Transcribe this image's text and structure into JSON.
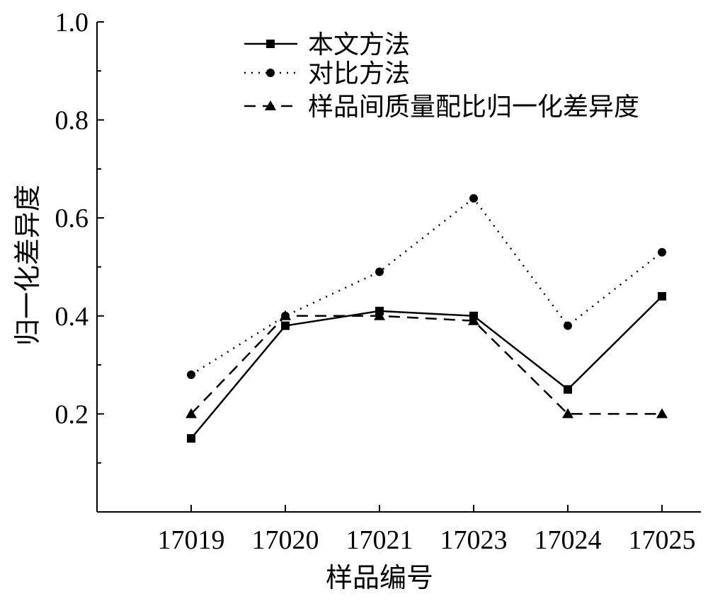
{
  "chart_data": {
    "type": "line",
    "title": "",
    "xlabel": "样品编号",
    "ylabel": "归一化差异度",
    "categories": [
      "17019",
      "17020",
      "17021",
      "17023",
      "17024",
      "17025"
    ],
    "ylim": [
      0,
      1.0
    ],
    "yticks": [
      "0.2",
      "0.4",
      "0.6",
      "0.8",
      "1.0"
    ],
    "ytick_values": [
      0.2,
      0.4,
      0.6,
      0.8,
      1.0
    ],
    "minor_yticks": [
      0.1,
      0.3,
      0.5,
      0.7,
      0.9
    ],
    "grid": false,
    "legend_position": "top",
    "series": [
      {
        "name": "本文方法",
        "style": "solid",
        "marker": "square",
        "values": [
          0.15,
          0.38,
          0.41,
          0.4,
          0.25,
          0.44
        ]
      },
      {
        "name": "对比方法",
        "style": "dotted",
        "marker": "circle",
        "values": [
          0.28,
          0.4,
          0.49,
          0.64,
          0.38,
          0.53
        ]
      },
      {
        "name": "样品间质量配比归一化差异度",
        "style": "dashed",
        "marker": "triangle",
        "values": [
          0.2,
          0.4,
          0.4,
          0.39,
          0.2,
          0.2
        ]
      }
    ],
    "colors": {
      "line": "#000000"
    }
  }
}
